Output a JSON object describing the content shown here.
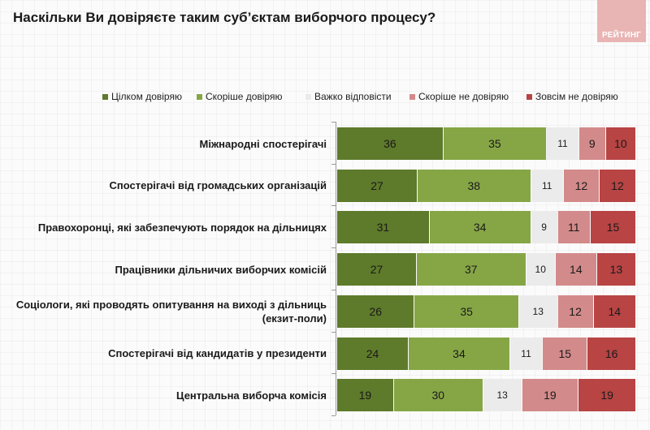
{
  "title": "Наскільки Ви довіряєте таким суб’єктам виборчого процесу?",
  "logo_text": "РЕЙТИНГ",
  "colors": {
    "fully_trust": "#5e7a2b",
    "rather_trust": "#86a646",
    "hard_to_say": "#ebebeb",
    "rather_distrust": "#d38a8a",
    "fully_distrust": "#b84444",
    "logo": "#e9b4b4"
  },
  "chart_data": {
    "type": "bar",
    "orientation": "horizontal",
    "stacked": true,
    "title": "Наскільки Ви довіряєте таким суб’єктам виборчого процесу?",
    "xlabel": "",
    "ylabel": "",
    "legend_position": "top",
    "grid": false,
    "data_labels": true,
    "categories": [
      "Міжнародні спостерігачі",
      "Спостерігачі від громадських організацій",
      "Правохоронці, які забезпечують порядок на дільницях",
      "Працівники дільничих виборчих комісій",
      "Соціологи, які проводять опитування на виході з дільниць (екзит-поли)",
      "Спостерігачі від кандидатів у президенти",
      "Центральна виборча комісія"
    ],
    "series": [
      {
        "name": "Цілком довіряю",
        "values": [
          36,
          27,
          31,
          27,
          26,
          24,
          19
        ]
      },
      {
        "name": "Скоріше довіряю",
        "values": [
          35,
          38,
          34,
          37,
          35,
          34,
          30
        ]
      },
      {
        "name": "Важко відповісти",
        "values": [
          11,
          11,
          9,
          10,
          13,
          11,
          13
        ]
      },
      {
        "name": "Скоріше не довіряю",
        "values": [
          9,
          12,
          11,
          14,
          12,
          15,
          19
        ]
      },
      {
        "name": "Зовсім не довіряю",
        "values": [
          10,
          12,
          15,
          13,
          14,
          16,
          19
        ]
      }
    ]
  }
}
